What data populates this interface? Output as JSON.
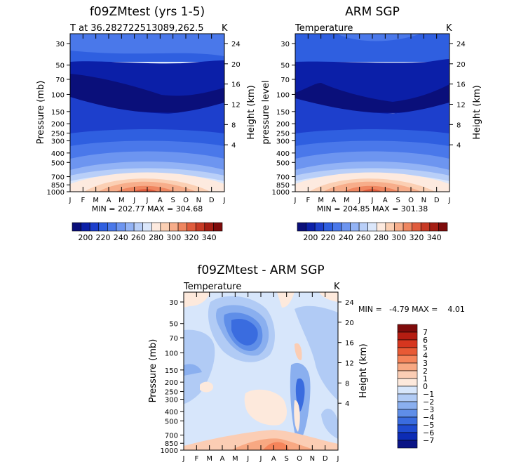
{
  "chart_data": [
    {
      "type": "heatmap",
      "title": "f09ZMtest (yrs 1-5)",
      "subtitle_left": "T at 36.282722513089,262.5",
      "subtitle_right": "K",
      "ylabel": "Pressure (mb)",
      "ylabel_right": "Height (km)",
      "x_ticks": [
        "J",
        "F",
        "M",
        "A",
        "M",
        "J",
        "J",
        "A",
        "S",
        "O",
        "N",
        "D",
        "J"
      ],
      "y_ticks": [
        30,
        50,
        70,
        100,
        150,
        200,
        250,
        300,
        400,
        500,
        700,
        850,
        1000
      ],
      "height_ticks": [
        24,
        20,
        16,
        12,
        8,
        4
      ],
      "stats": "MIN = 202.77  MAX = 304.68",
      "min": 202.77,
      "max": 304.68
    },
    {
      "type": "heatmap",
      "title": "ARM SGP",
      "subtitle_left": "Temperature",
      "subtitle_right": "K",
      "ylabel": "pressure level",
      "ylabel_right": "Height (km)",
      "x_ticks": [
        "J",
        "F",
        "M",
        "A",
        "M",
        "J",
        "J",
        "A",
        "S",
        "O",
        "N",
        "D",
        "J"
      ],
      "y_ticks": [
        30,
        50,
        70,
        100,
        150,
        200,
        250,
        300,
        400,
        500,
        700,
        850,
        1000
      ],
      "height_ticks": [
        24,
        20,
        16,
        12,
        8,
        4
      ],
      "stats": "MIN = 204.85  MAX = 301.38",
      "min": 204.85,
      "max": 301.38
    },
    {
      "type": "heatmap",
      "title": "f09ZMtest - ARM SGP",
      "subtitle_left": "Temperature",
      "subtitle_right": "K",
      "ylabel": "Pressure (mb)",
      "ylabel_right": "Height (km)",
      "x_ticks": [
        "J",
        "F",
        "M",
        "A",
        "M",
        "J",
        "J",
        "A",
        "S",
        "O",
        "N",
        "D",
        "J"
      ],
      "y_ticks": [
        30,
        50,
        70,
        100,
        150,
        200,
        250,
        300,
        400,
        500,
        700,
        850,
        1000
      ],
      "height_ticks": [
        24,
        20,
        16,
        12,
        8,
        4
      ],
      "stats": "MIN =   -4.79 MAX =    4.01",
      "min": -4.79,
      "max": 4.01
    }
  ],
  "temp_colorbar": {
    "labels": [
      "200",
      "220",
      "240",
      "260",
      "280",
      "300",
      "320",
      "340"
    ],
    "colors": [
      "#0a0f7a",
      "#0b1fa8",
      "#1d3fcc",
      "#2f5fe0",
      "#4a78ea",
      "#6d95f0",
      "#93b3f5",
      "#b9cff8",
      "#dbe7fb",
      "#fdeadf",
      "#fbcfb3",
      "#f7ad8a",
      "#ef8660",
      "#e05c3d",
      "#c73a25",
      "#a51e14",
      "#7e0b0b"
    ]
  },
  "diff_colorbar": {
    "labels": [
      "7",
      "6",
      "5",
      "4",
      "3",
      "2",
      "1",
      "0",
      "−1",
      "−2",
      "−3",
      "−4",
      "−5",
      "−6",
      "−7"
    ],
    "colors": [
      "#7e0b0b",
      "#b51d12",
      "#d6361f",
      "#e85a35",
      "#f5845a",
      "#f8a882",
      "#fbcdb4",
      "#fde9dc",
      "#d7e6fb",
      "#b1cbf5",
      "#8aafef",
      "#5f8ee8",
      "#3a6cdf",
      "#1f4bd0",
      "#0d2cb5",
      "#0a1485"
    ]
  }
}
